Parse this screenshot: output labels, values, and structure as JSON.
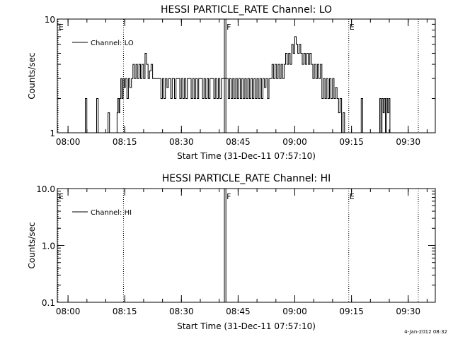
{
  "footer_date": "4-Jan-2012 08:32",
  "chart_data": [
    {
      "type": "line",
      "title": "HESSI PARTICLE_RATE Channel: LO",
      "xlabel": "Start Time (31-Dec-11 07:57:10)",
      "ylabel": "Counts/sec",
      "yscale": "log",
      "ylim": [
        1,
        10
      ],
      "y_ticks": [
        {
          "v": 1,
          "label": "1"
        },
        {
          "v": 10,
          "label": "10"
        }
      ],
      "x_range_min": [
        0,
        100
      ],
      "x_ticks": [
        {
          "v": 2.83,
          "label": "08:00"
        },
        {
          "v": 17.83,
          "label": "08:15"
        },
        {
          "v": 32.83,
          "label": "08:30"
        },
        {
          "v": 47.83,
          "label": "08:45"
        },
        {
          "v": 62.83,
          "label": "09:00"
        },
        {
          "v": 77.83,
          "label": "09:15"
        },
        {
          "v": 92.83,
          "label": "09:30"
        }
      ],
      "legend": {
        "label": "Channel: LO",
        "position": "top-left"
      },
      "markers": [
        {
          "x": 0,
          "label": "E",
          "style": "dotted"
        },
        {
          "x": 17.5,
          "label": "",
          "style": "dotted"
        },
        {
          "x": 44.2,
          "label": "",
          "style": "solid"
        },
        {
          "x": 44.6,
          "label": "F",
          "style": "solid"
        },
        {
          "x": 77.1,
          "label": "E",
          "style": "dotted"
        },
        {
          "x": 95.5,
          "label": "",
          "style": "dotted"
        }
      ],
      "series": [
        {
          "values": [
            [
              0,
              1
            ],
            [
              7,
              1
            ],
            [
              7.4,
              2
            ],
            [
              7.8,
              1
            ],
            [
              10,
              1
            ],
            [
              10.4,
              2
            ],
            [
              10.8,
              1
            ],
            [
              13,
              1
            ],
            [
              13.4,
              1.5
            ],
            [
              13.8,
              1
            ],
            [
              15.5,
              1
            ],
            [
              15.8,
              1.5
            ],
            [
              16,
              2
            ],
            [
              16.3,
              1.5
            ],
            [
              16.5,
              2
            ],
            [
              16.8,
              3
            ],
            [
              17.1,
              2
            ],
            [
              17.4,
              3
            ],
            [
              17.7,
              2.5
            ],
            [
              18,
              3
            ],
            [
              18.4,
              2
            ],
            [
              18.8,
              3
            ],
            [
              19.2,
              2.5
            ],
            [
              19.6,
              3
            ],
            [
              20,
              4
            ],
            [
              20.4,
              3
            ],
            [
              20.8,
              4
            ],
            [
              21.2,
              3
            ],
            [
              21.6,
              4
            ],
            [
              22,
              3
            ],
            [
              22.4,
              4
            ],
            [
              22.8,
              3
            ],
            [
              23.2,
              5
            ],
            [
              23.6,
              4
            ],
            [
              24,
              3
            ],
            [
              24.4,
              3.5
            ],
            [
              24.8,
              4
            ],
            [
              25.2,
              3
            ],
            [
              26,
              3
            ],
            [
              27,
              3
            ],
            [
              27.4,
              2
            ],
            [
              27.8,
              3
            ],
            [
              28.2,
              2
            ],
            [
              28.6,
              3
            ],
            [
              29,
              2.5
            ],
            [
              29.4,
              3
            ],
            [
              30,
              2
            ],
            [
              30.4,
              3
            ],
            [
              31,
              2
            ],
            [
              31.4,
              3
            ],
            [
              32,
              3
            ],
            [
              32.4,
              2
            ],
            [
              32.8,
              3
            ],
            [
              33.2,
              2
            ],
            [
              33.6,
              3
            ],
            [
              34,
              2
            ],
            [
              34.4,
              3
            ],
            [
              35,
              3
            ],
            [
              35.4,
              2
            ],
            [
              35.8,
              3
            ],
            [
              36.2,
              2
            ],
            [
              36.6,
              3
            ],
            [
              37,
              2
            ],
            [
              37.4,
              3
            ],
            [
              38,
              3
            ],
            [
              38.4,
              2
            ],
            [
              38.8,
              3
            ],
            [
              39.2,
              2
            ],
            [
              39.6,
              3
            ],
            [
              40,
              2
            ],
            [
              40.4,
              3
            ],
            [
              41,
              3
            ],
            [
              41.4,
              2
            ],
            [
              41.8,
              3
            ],
            [
              42.2,
              2
            ],
            [
              42.6,
              3
            ],
            [
              43,
              2
            ],
            [
              43.4,
              3
            ],
            [
              44,
              3
            ],
            [
              44.8,
              3
            ],
            [
              45.2,
              2
            ],
            [
              45.6,
              3
            ],
            [
              46,
              2
            ],
            [
              46.4,
              3
            ],
            [
              46.8,
              2
            ],
            [
              47.2,
              3
            ],
            [
              47.6,
              2
            ],
            [
              48,
              3
            ],
            [
              48.4,
              2
            ],
            [
              48.8,
              3
            ],
            [
              49.2,
              2
            ],
            [
              49.6,
              3
            ],
            [
              50,
              2
            ],
            [
              50.4,
              3
            ],
            [
              50.8,
              2
            ],
            [
              51.2,
              3
            ],
            [
              51.6,
              2
            ],
            [
              52,
              3
            ],
            [
              52.4,
              2
            ],
            [
              52.8,
              3
            ],
            [
              53.2,
              2
            ],
            [
              53.6,
              3
            ],
            [
              54,
              2
            ],
            [
              54.4,
              3
            ],
            [
              54.8,
              2.5
            ],
            [
              55.2,
              3
            ],
            [
              55.6,
              2
            ],
            [
              56,
              3
            ],
            [
              56.4,
              3
            ],
            [
              56.8,
              4
            ],
            [
              57.2,
              3
            ],
            [
              57.6,
              4
            ],
            [
              58,
              3
            ],
            [
              58.4,
              4
            ],
            [
              58.8,
              3
            ],
            [
              59.2,
              4
            ],
            [
              59.6,
              3
            ],
            [
              60,
              4
            ],
            [
              60.4,
              5
            ],
            [
              60.8,
              4
            ],
            [
              61.2,
              5
            ],
            [
              61.6,
              4
            ],
            [
              62,
              6
            ],
            [
              62.4,
              5
            ],
            [
              62.8,
              7
            ],
            [
              63.2,
              6
            ],
            [
              63.6,
              5
            ],
            [
              64,
              6
            ],
            [
              64.4,
              5
            ],
            [
              64.8,
              4
            ],
            [
              65.2,
              5
            ],
            [
              65.6,
              4
            ],
            [
              66,
              5
            ],
            [
              66.4,
              4
            ],
            [
              66.8,
              5
            ],
            [
              67.2,
              4
            ],
            [
              67.6,
              3
            ],
            [
              68,
              4
            ],
            [
              68.4,
              3
            ],
            [
              68.8,
              4
            ],
            [
              69.2,
              3
            ],
            [
              69.6,
              4
            ],
            [
              70,
              2
            ],
            [
              70.4,
              3
            ],
            [
              70.8,
              2
            ],
            [
              71.2,
              3
            ],
            [
              71.6,
              2
            ],
            [
              72,
              3
            ],
            [
              72.4,
              2
            ],
            [
              72.8,
              3
            ],
            [
              73.2,
              2
            ],
            [
              73.6,
              2.5
            ],
            [
              74,
              2
            ],
            [
              74.4,
              1.5
            ],
            [
              74.8,
              2
            ],
            [
              75.2,
              1
            ],
            [
              75.6,
              1.5
            ],
            [
              76,
              1
            ],
            [
              77,
              1
            ],
            [
              80,
              1
            ],
            [
              80.4,
              2
            ],
            [
              80.8,
              1
            ],
            [
              85,
              1
            ],
            [
              85.3,
              2
            ],
            [
              85.6,
              1
            ],
            [
              85.9,
              2
            ],
            [
              86.2,
              1.5
            ],
            [
              86.5,
              2
            ],
            [
              86.8,
              1
            ],
            [
              87.1,
              2
            ],
            [
              87.4,
              1.5
            ],
            [
              87.7,
              2
            ],
            [
              88,
              1
            ],
            [
              90,
              1
            ]
          ]
        }
      ]
    },
    {
      "type": "line",
      "title": "HESSI PARTICLE_RATE Channel: HI",
      "xlabel": "Start Time (31-Dec-11 07:57:10)",
      "ylabel": "Counts/sec",
      "yscale": "log",
      "ylim": [
        0.1,
        10
      ],
      "y_ticks": [
        {
          "v": 0.1,
          "label": "0.1"
        },
        {
          "v": 1,
          "label": "1.0"
        },
        {
          "v": 10,
          "label": "10.0"
        }
      ],
      "x_range_min": [
        0,
        100
      ],
      "x_ticks": [
        {
          "v": 2.83,
          "label": "08:00"
        },
        {
          "v": 17.83,
          "label": "08:15"
        },
        {
          "v": 32.83,
          "label": "08:30"
        },
        {
          "v": 47.83,
          "label": "08:45"
        },
        {
          "v": 62.83,
          "label": "09:00"
        },
        {
          "v": 77.83,
          "label": "09:15"
        },
        {
          "v": 92.83,
          "label": "09:30"
        }
      ],
      "legend": {
        "label": "Channel: HI",
        "position": "top-left"
      },
      "markers": [
        {
          "x": 0,
          "label": "E",
          "style": "dotted"
        },
        {
          "x": 17.5,
          "label": "",
          "style": "dotted"
        },
        {
          "x": 44.2,
          "label": "",
          "style": "solid"
        },
        {
          "x": 44.6,
          "label": "F",
          "style": "solid"
        },
        {
          "x": 77.1,
          "label": "E",
          "style": "dotted"
        },
        {
          "x": 95.5,
          "label": "",
          "style": "dotted"
        }
      ],
      "series": [
        {
          "values": []
        }
      ]
    }
  ]
}
